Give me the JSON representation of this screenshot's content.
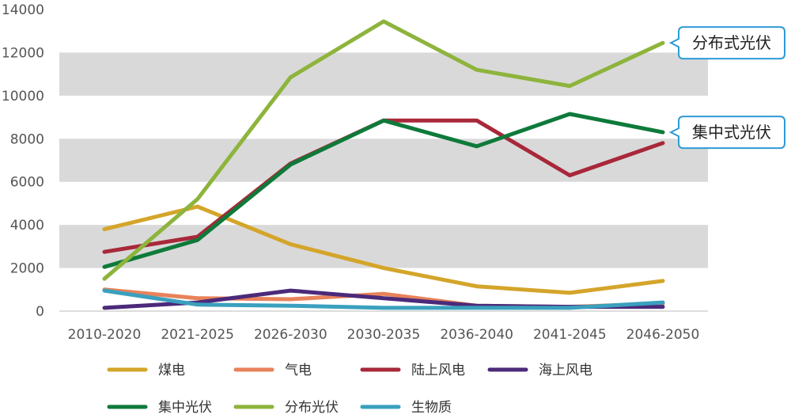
{
  "chart_data": {
    "type": "line",
    "categories": [
      "2010-2020",
      "2021-2025",
      "2026-2030",
      "2030-2035",
      "2036-2040",
      "2041-2045",
      "2046-2050"
    ],
    "ylim": [
      0,
      14000
    ],
    "yticks": [
      "0",
      "2000",
      "4000",
      "6000",
      "8000",
      "10000",
      "12000",
      "14000"
    ],
    "grid": "alternating horizontal bands",
    "legend_position": "bottom",
    "series": [
      {
        "name": "煤电",
        "color": "#D4A52A",
        "values": [
          3800,
          4850,
          3100,
          2000,
          1150,
          850,
          1400
        ]
      },
      {
        "name": "气电",
        "color": "#E8825A",
        "values": [
          1000,
          600,
          550,
          800,
          250,
          200,
          350
        ]
      },
      {
        "name": "陆上风电",
        "color": "#A8283A",
        "values": [
          2750,
          3450,
          6850,
          8850,
          8850,
          6300,
          7800
        ]
      },
      {
        "name": "海上风电",
        "color": "#4B2A7A",
        "values": [
          150,
          400,
          950,
          600,
          250,
          200,
          200
        ]
      },
      {
        "name": "集中光伏",
        "color": "#0E7A3A",
        "values": [
          2050,
          3300,
          6800,
          8850,
          7650,
          9150,
          8300
        ]
      },
      {
        "name": "分布光伏",
        "color": "#8DB43C",
        "values": [
          1500,
          5200,
          10850,
          13450,
          11200,
          10450,
          12450
        ]
      },
      {
        "name": "生物质",
        "color": "#3AA0BE",
        "values": [
          950,
          300,
          250,
          150,
          150,
          150,
          400
        ]
      }
    ],
    "callouts": [
      {
        "text": "分布式光伏",
        "series_index": 5
      },
      {
        "text": "集中式光伏",
        "series_index": 4
      }
    ]
  }
}
